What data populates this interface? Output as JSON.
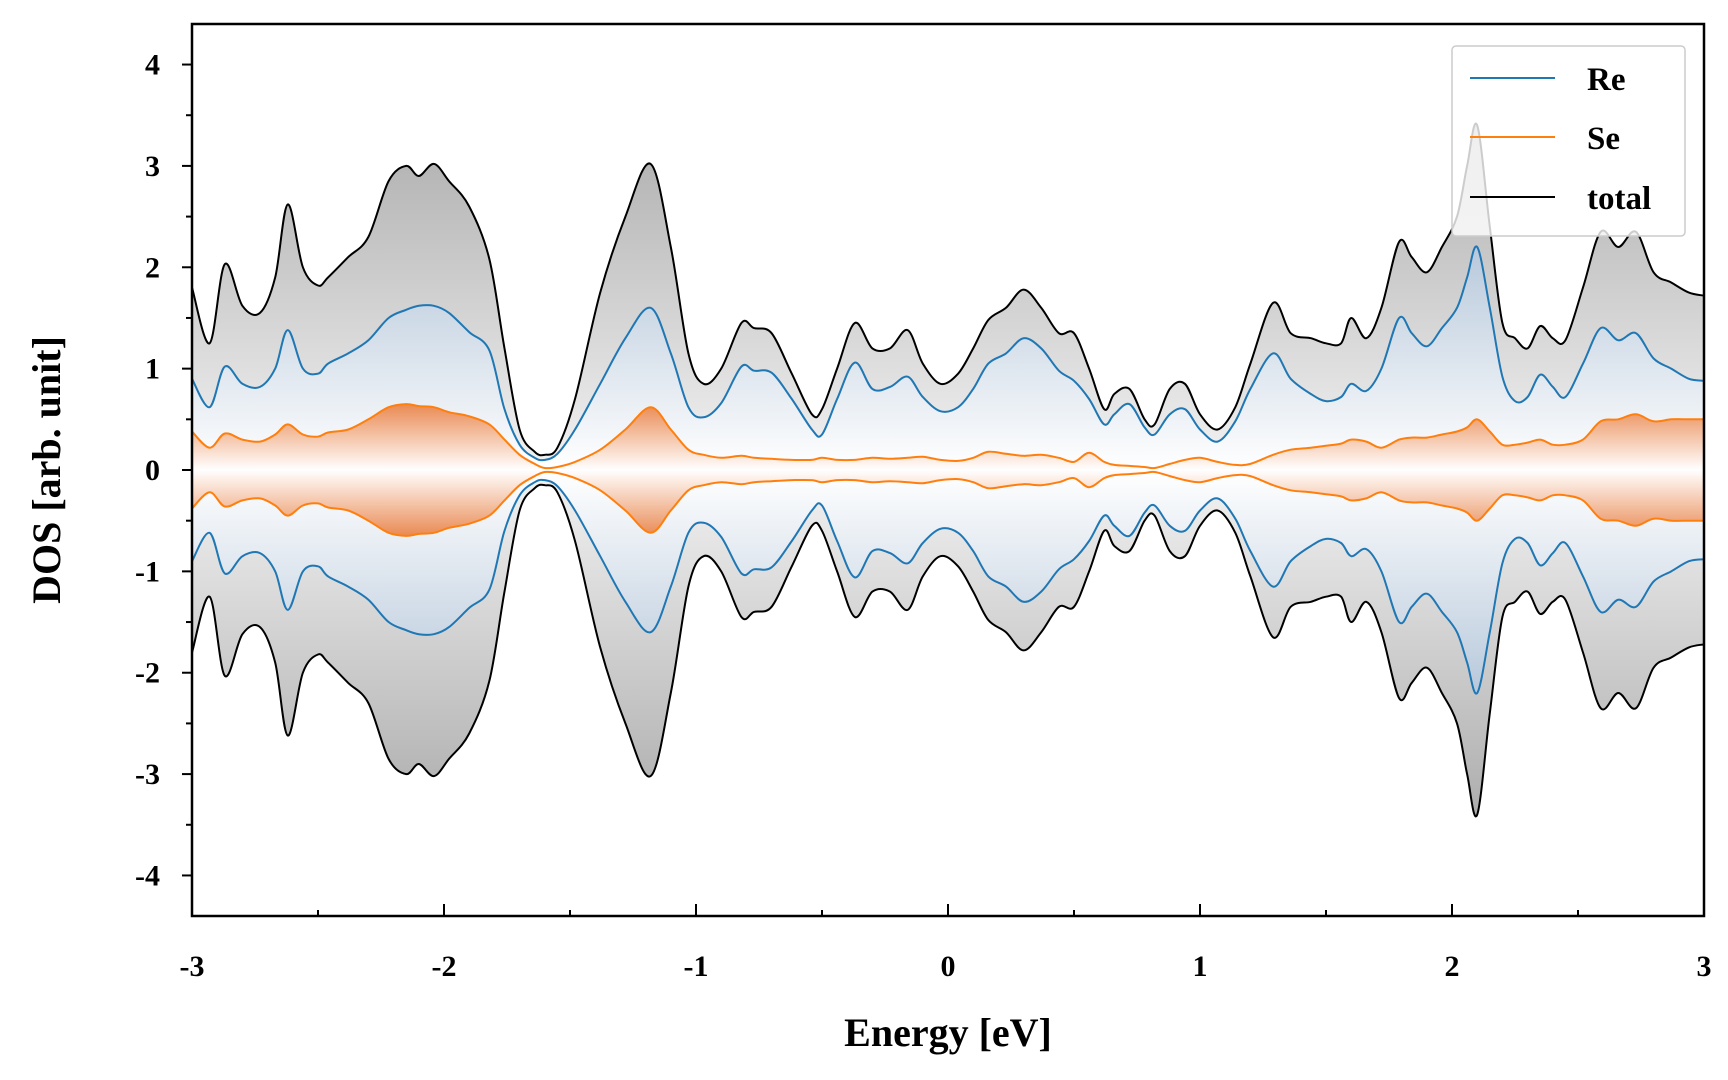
{
  "chart_data": {
    "type": "area",
    "xlabel": "Energy [eV]",
    "ylabel": "DOS [arb. unit]",
    "xlim": [
      -3,
      3
    ],
    "ylim": [
      -4.4,
      4.4
    ],
    "xticks": [
      -3,
      -2,
      -1,
      0,
      1,
      2,
      3
    ],
    "xtick_labels": [
      "-3",
      "-2",
      "-1",
      "0",
      "1",
      "2",
      "3"
    ],
    "yticks": [
      4,
      3,
      2,
      1,
      0,
      -1,
      -2,
      -3,
      -4
    ],
    "ytick_labels": [
      "4",
      "3",
      "2",
      "1",
      "0",
      "-1",
      "-2",
      "-3",
      "-4"
    ],
    "mirrored": true,
    "legend_position": "top-right",
    "x": [
      -3.0,
      -2.93,
      -2.87,
      -2.8,
      -2.73,
      -2.67,
      -2.62,
      -2.56,
      -2.5,
      -2.46,
      -2.38,
      -2.3,
      -2.22,
      -2.15,
      -2.1,
      -2.04,
      -1.98,
      -1.9,
      -1.82,
      -1.76,
      -1.7,
      -1.64,
      -1.6,
      -1.55,
      -1.48,
      -1.38,
      -1.28,
      -1.18,
      -1.1,
      -1.03,
      -0.97,
      -0.9,
      -0.82,
      -0.77,
      -0.7,
      -0.62,
      -0.54,
      -0.5,
      -0.44,
      -0.37,
      -0.3,
      -0.23,
      -0.16,
      -0.1,
      -0.03,
      0.04,
      0.1,
      0.16,
      0.23,
      0.3,
      0.37,
      0.44,
      0.5,
      0.56,
      0.62,
      0.66,
      0.72,
      0.78,
      0.82,
      0.88,
      0.94,
      1.0,
      1.07,
      1.14,
      1.2,
      1.29,
      1.36,
      1.44,
      1.5,
      1.56,
      1.6,
      1.66,
      1.72,
      1.79,
      1.84,
      1.9,
      1.96,
      2.02,
      2.06,
      2.1,
      2.15,
      2.2,
      2.25,
      2.3,
      2.35,
      2.4,
      2.45,
      2.52,
      2.59,
      2.66,
      2.73,
      2.8,
      2.87,
      2.94,
      3.0
    ],
    "series": [
      {
        "name": "Re",
        "color": "#1f77b4",
        "values": [
          0.9,
          0.62,
          1.02,
          0.85,
          0.82,
          1.0,
          1.38,
          1.0,
          0.95,
          1.05,
          1.15,
          1.28,
          1.5,
          1.58,
          1.62,
          1.62,
          1.55,
          1.36,
          1.18,
          0.6,
          0.25,
          0.12,
          0.1,
          0.16,
          0.4,
          0.85,
          1.3,
          1.6,
          1.15,
          0.62,
          0.52,
          0.66,
          1.02,
          0.98,
          0.96,
          0.7,
          0.4,
          0.35,
          0.7,
          1.06,
          0.8,
          0.82,
          0.92,
          0.72,
          0.58,
          0.62,
          0.8,
          1.05,
          1.15,
          1.3,
          1.2,
          0.98,
          0.88,
          0.7,
          0.45,
          0.55,
          0.65,
          0.42,
          0.35,
          0.55,
          0.6,
          0.4,
          0.28,
          0.48,
          0.8,
          1.15,
          0.9,
          0.75,
          0.68,
          0.72,
          0.85,
          0.78,
          1.0,
          1.5,
          1.35,
          1.22,
          1.4,
          1.6,
          1.9,
          2.2,
          1.6,
          0.92,
          0.68,
          0.72,
          0.94,
          0.82,
          0.72,
          1.05,
          1.4,
          1.28,
          1.35,
          1.1,
          1.0,
          0.9,
          0.88
        ]
      },
      {
        "name": "Se",
        "color": "#ff7f0e",
        "values": [
          0.38,
          0.22,
          0.36,
          0.3,
          0.28,
          0.35,
          0.45,
          0.35,
          0.33,
          0.37,
          0.4,
          0.5,
          0.62,
          0.65,
          0.63,
          0.62,
          0.57,
          0.53,
          0.45,
          0.3,
          0.15,
          0.06,
          0.02,
          0.03,
          0.08,
          0.2,
          0.4,
          0.62,
          0.4,
          0.2,
          0.15,
          0.12,
          0.14,
          0.12,
          0.11,
          0.1,
          0.1,
          0.12,
          0.1,
          0.1,
          0.12,
          0.11,
          0.12,
          0.13,
          0.1,
          0.09,
          0.12,
          0.18,
          0.16,
          0.14,
          0.15,
          0.12,
          0.08,
          0.17,
          0.08,
          0.05,
          0.04,
          0.03,
          0.02,
          0.06,
          0.1,
          0.12,
          0.08,
          0.05,
          0.06,
          0.15,
          0.2,
          0.22,
          0.24,
          0.26,
          0.3,
          0.28,
          0.22,
          0.3,
          0.32,
          0.32,
          0.35,
          0.38,
          0.42,
          0.5,
          0.38,
          0.25,
          0.25,
          0.27,
          0.3,
          0.25,
          0.25,
          0.3,
          0.48,
          0.5,
          0.55,
          0.48,
          0.5,
          0.5,
          0.5
        ]
      },
      {
        "name": "total",
        "color": "#000000",
        "values": [
          1.8,
          1.25,
          2.03,
          1.62,
          1.55,
          1.9,
          2.62,
          2.0,
          1.82,
          1.9,
          2.1,
          2.3,
          2.85,
          3.0,
          2.9,
          3.02,
          2.85,
          2.6,
          2.08,
          1.2,
          0.4,
          0.18,
          0.15,
          0.22,
          0.7,
          1.75,
          2.5,
          3.02,
          2.2,
          1.15,
          0.85,
          1.0,
          1.45,
          1.4,
          1.35,
          0.95,
          0.55,
          0.6,
          1.0,
          1.45,
          1.2,
          1.2,
          1.38,
          1.05,
          0.85,
          0.95,
          1.2,
          1.48,
          1.6,
          1.78,
          1.6,
          1.35,
          1.35,
          1.0,
          0.6,
          0.75,
          0.8,
          0.5,
          0.45,
          0.8,
          0.85,
          0.55,
          0.4,
          0.62,
          1.05,
          1.65,
          1.35,
          1.3,
          1.25,
          1.25,
          1.5,
          1.3,
          1.6,
          2.25,
          2.1,
          1.95,
          2.2,
          2.5,
          3.0,
          3.4,
          2.4,
          1.45,
          1.3,
          1.2,
          1.42,
          1.3,
          1.28,
          1.8,
          2.35,
          2.2,
          2.35,
          1.95,
          1.85,
          1.75,
          1.72
        ]
      }
    ]
  }
}
